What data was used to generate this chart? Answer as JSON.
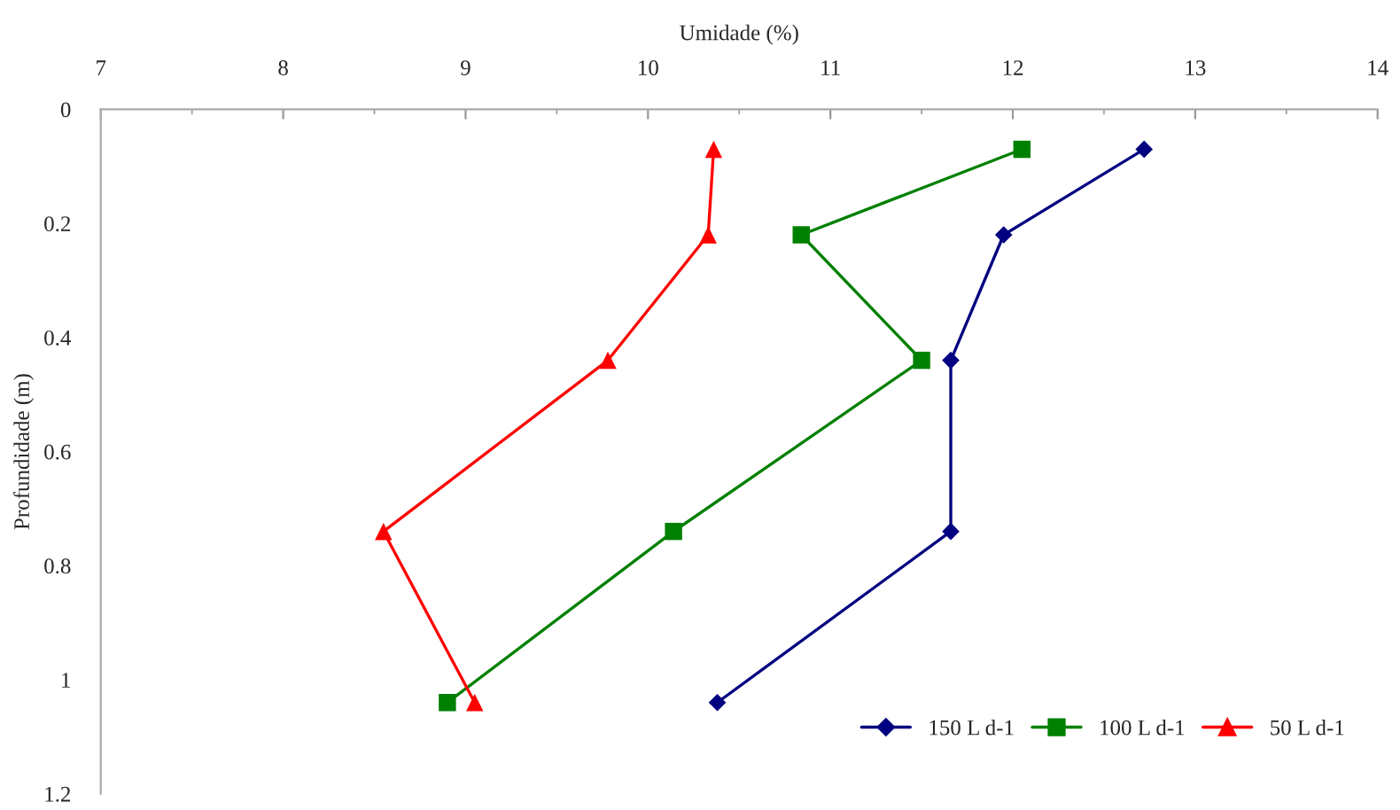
{
  "chart_data": {
    "type": "line",
    "xlabel": "Umidade (%)",
    "ylabel": "Profundidade (m)",
    "xlim": [
      7,
      14
    ],
    "xticks": [
      7,
      8,
      9,
      10,
      11,
      12,
      13,
      14
    ],
    "ylim": [
      1.2,
      0
    ],
    "yticks": [
      0,
      0.2,
      0.4,
      0.6,
      0.8,
      1,
      1.2
    ],
    "grid": false,
    "legend": "bottom right",
    "line_style": "solid",
    "series": [
      {
        "name": "150 L d-1",
        "color": "#000080",
        "marker": "diamond",
        "x": [
          12.72,
          11.95,
          11.66,
          11.66,
          10.38
        ],
        "values": [
          0.07,
          0.22,
          0.44,
          0.74,
          1.04
        ]
      },
      {
        "name": "100 L d-1",
        "color": "#008000",
        "marker": "square",
        "x": [
          12.05,
          10.84,
          11.5,
          10.14,
          8.9
        ],
        "values": [
          0.07,
          0.22,
          0.44,
          0.74,
          1.04
        ]
      },
      {
        "name": "50 L d-1",
        "color": "#ff0000",
        "marker": "triangle",
        "x": [
          10.36,
          10.33,
          9.78,
          8.55,
          9.05
        ],
        "values": [
          0.07,
          0.22,
          0.44,
          0.74,
          1.04
        ]
      }
    ]
  }
}
